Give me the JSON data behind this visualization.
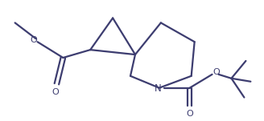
{
  "bg_color": "#ffffff",
  "line_color": "#3d3d70",
  "line_width": 1.6,
  "figsize": [
    3.28,
    1.51
  ],
  "dpi": 100,
  "xlim": [
    0,
    328
  ],
  "ylim": [
    0,
    151
  ]
}
